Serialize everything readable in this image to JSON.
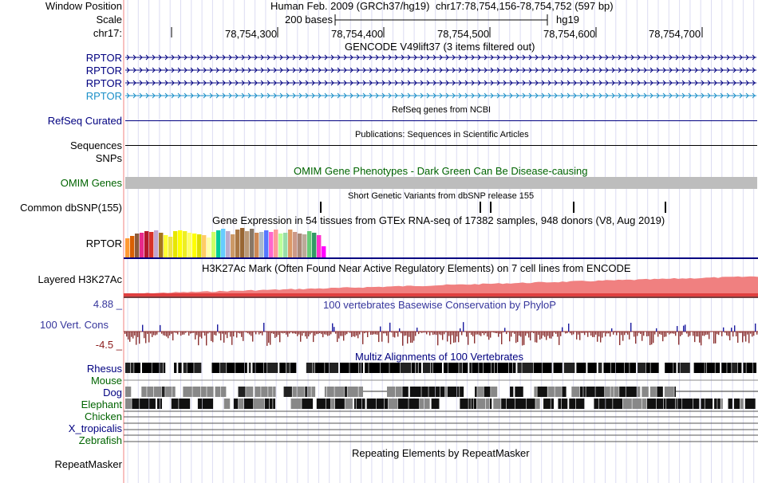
{
  "position": {
    "window_position_label": "Window Position",
    "assembly": "Human Feb. 2009 (GRCh37/hg19)",
    "range": "chr17:78,754,156-78,754,752 (597 bp)",
    "scale_label": "Scale",
    "scale_value": "200 bases",
    "db": "hg19",
    "chrom_label": "chr17:",
    "ticks": [
      "78,754,300",
      "78,754,400",
      "78,754,500",
      "78,754,600",
      "78,754,700"
    ]
  },
  "gencode": {
    "title": "GENCODE V49lift37 (3 items filtered out)",
    "items": [
      "RPTOR",
      "RPTOR",
      "RPTOR",
      "RPTOR"
    ]
  },
  "refseq": {
    "title": "RefSeq genes from NCBI",
    "label": "RefSeq Curated"
  },
  "publications": {
    "title": "Publications: Sequences in Scientific Articles",
    "label": "Sequences"
  },
  "snps": {
    "label": "SNPs"
  },
  "omim": {
    "title": "OMIM Gene Phenotypes - Dark Green Can Be Disease-causing",
    "label": "OMIM Genes"
  },
  "dbsnp": {
    "title": "Short Genetic Variants from dbSNP release 155",
    "label": "Common dbSNP(155)"
  },
  "gtex": {
    "title": "Gene Expression in 54 tissues from GTEx RNA-seq of 17382 samples, 948 donors (V8, Aug 2019)",
    "label": "RPTOR"
  },
  "h3k27ac": {
    "title": "H3K27Ac Mark (Often Found Near Active Regulatory Elements) on 7 cell lines from ENCODE",
    "label": "Layered H3K27Ac"
  },
  "conservation": {
    "title": "100 vertebrates Basewise Conservation by PhyloP",
    "label": "100 Vert. Cons",
    "max": "4.88 _",
    "min": "-4.5 _"
  },
  "multiz": {
    "title": "Multiz Alignments of 100 Vertebrates",
    "species": [
      "Rhesus",
      "Mouse",
      "Dog",
      "Elephant",
      "Chicken",
      "X_tropicalis",
      "Zebrafish"
    ]
  },
  "repeatmasker": {
    "title": "Repeating Elements by RepeatMasker",
    "label": "RepeatMasker"
  }
}
